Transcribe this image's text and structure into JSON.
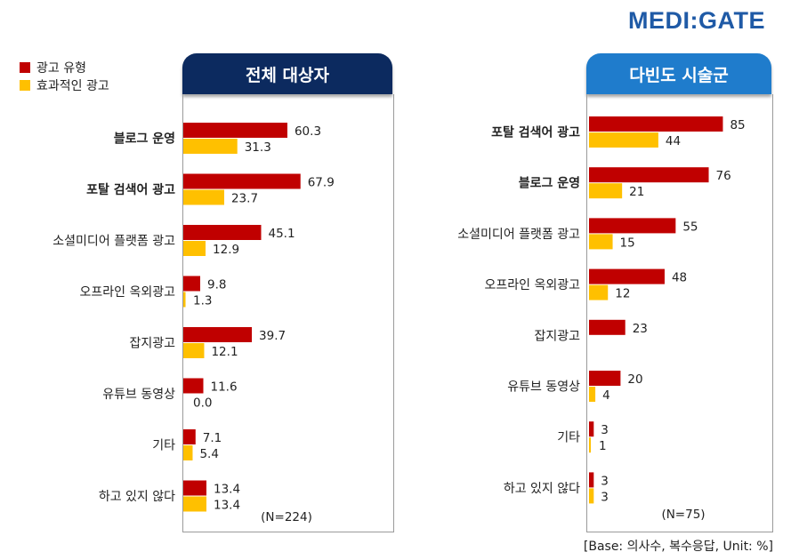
{
  "brand": "MEDI:GATE",
  "legend": [
    {
      "label": "광고 유형",
      "color": "#c00000"
    },
    {
      "label": "효과적인 광고",
      "color": "#ffc000"
    }
  ],
  "base_note": "[Base: 의사수, 복수응답, Unit: %]",
  "chart_data": [
    {
      "type": "bar",
      "orientation": "horizontal",
      "title": "전체 대상자",
      "note": "(N=224)",
      "categories": [
        "블로그 운영",
        "포탈 검색어 광고",
        "소셜미디어 플랫폼 광고",
        "오프라인 옥외광고",
        "잡지광고",
        "유튜브 동영상",
        "기타",
        "하고 있지 않다"
      ],
      "bold_categories": [
        "블로그 운영",
        "포탈 검색어 광고"
      ],
      "series": [
        {
          "name": "광고 유형",
          "color": "#c00000",
          "values": [
            60.3,
            67.9,
            45.1,
            9.8,
            39.7,
            11.6,
            7.1,
            13.4
          ],
          "labels": [
            "60.3",
            "67.9",
            "45.1",
            "9.8",
            "39.7",
            "11.6",
            "7.1",
            "13.4"
          ]
        },
        {
          "name": "효과적인 광고",
          "color": "#ffc000",
          "values": [
            31.3,
            23.7,
            12.9,
            1.3,
            12.1,
            0.0,
            5.4,
            13.4
          ],
          "labels": [
            "31.3",
            "23.7",
            "12.9",
            "1.3",
            "12.1",
            "0.0",
            "5.4",
            "13.4"
          ]
        }
      ],
      "xlim": [
        0,
        100
      ]
    },
    {
      "type": "bar",
      "orientation": "horizontal",
      "title": "다빈도 시술군",
      "note": "(N=75)",
      "categories": [
        "포탈 검색어 광고",
        "블로그 운영",
        "소셜미디어 플랫폼 광고",
        "오프라인 옥외광고",
        "잡지광고",
        "유튜브 동영상",
        "기타",
        "하고 있지 않다"
      ],
      "bold_categories": [
        "포탈 검색어 광고",
        "블로그 운영"
      ],
      "series": [
        {
          "name": "광고 유형",
          "color": "#c00000",
          "values": [
            85,
            76,
            55,
            48,
            23,
            20,
            3,
            3
          ],
          "labels": [
            "85",
            "76",
            "55",
            "48",
            "23",
            "20",
            "3",
            "3"
          ]
        },
        {
          "name": "효과적인 광고",
          "color": "#ffc000",
          "values": [
            44,
            21,
            15,
            12,
            null,
            4,
            1,
            3
          ],
          "labels": [
            "44",
            "21",
            "15",
            "12",
            null,
            "4",
            "1",
            "3"
          ]
        }
      ],
      "xlim": [
        0,
        100
      ]
    }
  ]
}
